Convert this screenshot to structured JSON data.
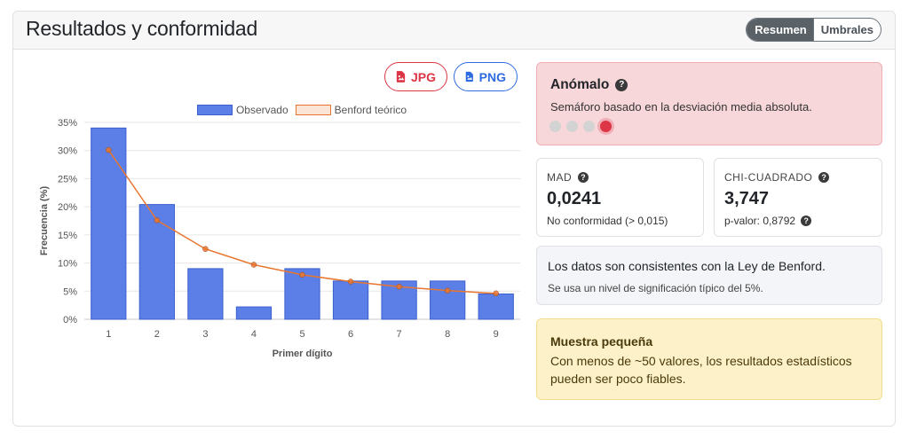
{
  "header": {
    "title": "Resultados y conformidad",
    "tabs": [
      {
        "label": "Resumen",
        "active": true
      },
      {
        "label": "Umbrales",
        "active": false
      }
    ]
  },
  "export": {
    "jpg_label": "JPG",
    "png_label": "PNG",
    "jpg_icon": "image-file-icon",
    "png_icon": "image-file-icon"
  },
  "chart_data": {
    "type": "bar",
    "categories": [
      "1",
      "2",
      "3",
      "4",
      "5",
      "6",
      "7",
      "8",
      "9"
    ],
    "series": [
      {
        "name": "Observado",
        "type": "bar",
        "color": "#5b7fe6",
        "values": [
          34.0,
          20.4,
          9.0,
          2.2,
          9.0,
          6.8,
          6.8,
          6.8,
          4.5
        ]
      },
      {
        "name": "Benford teórico",
        "type": "line",
        "color": "#e8762f",
        "values": [
          30.1,
          17.6,
          12.5,
          9.7,
          7.9,
          6.7,
          5.8,
          5.1,
          4.6
        ]
      }
    ],
    "xlabel": "Primer dígito",
    "ylabel": "Frecuencia (%)",
    "ylim": [
      0,
      35
    ],
    "yticks": [
      "0%",
      "5%",
      "10%",
      "15%",
      "20%",
      "25%",
      "30%",
      "35%"
    ],
    "grid": true,
    "legend": "top"
  },
  "status": {
    "title": "Anómalo",
    "description": "Semáforo basado en la desviación media absoluta.",
    "level": 4,
    "levels": 4,
    "active_color": "#dc3545"
  },
  "mad": {
    "label": "MAD",
    "value": "0,0241",
    "sub": "No conformidad (> 0,015)"
  },
  "chi": {
    "label": "CHI-CUADRADO",
    "value": "3,747",
    "sub": "p-valor: 0,8792"
  },
  "conclusion": {
    "main": "Los datos son consistentes con la Ley de Benford.",
    "sub": "Se usa un nivel de significación típico del 5%."
  },
  "warning": {
    "title": "Muestra pequeña",
    "body": "Con menos de ~50 valores, los resultados estadísticos pueden ser poco fiables."
  }
}
